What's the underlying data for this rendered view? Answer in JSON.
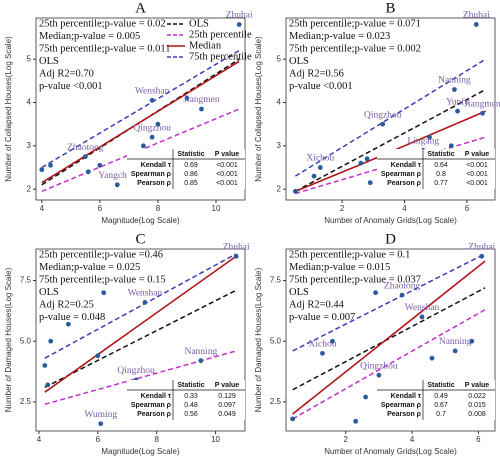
{
  "chart_data": [
    {
      "type": "scatter",
      "title": "A",
      "xlabel": "Magnitude(Log Scale)",
      "ylabel": "Number of Collapsed Houses(Log Scale)",
      "xlim": [
        3.8,
        11
      ],
      "ylim": [
        1.75,
        5.95
      ],
      "xticks": [
        4,
        6,
        8,
        10
      ],
      "yticks": [
        2,
        3,
        4,
        5
      ],
      "annotations": [
        "25th percentile;p-value = 0.02",
        "Median;p-value = 0.005",
        "75th percentile;p-value = 0.011",
        "OLS",
        "Adj R2=0.70",
        "p-value <0.001"
      ],
      "legend": "upper right",
      "points": {
        "color": "#2b5b9a",
        "x": [
          4.0,
          4.3,
          5.5,
          5.6,
          6.0,
          6.6,
          7.2,
          7.5,
          7.8,
          7.8,
          8.0,
          9.0,
          9.5,
          10.8
        ],
        "values": [
          2.45,
          2.55,
          2.75,
          2.4,
          2.55,
          2.1,
          2.7,
          3.0,
          3.2,
          4.05,
          3.5,
          4.1,
          3.85,
          5.8
        ],
        "labels": [
          null,
          null,
          "Zhaotong",
          null,
          null,
          "Yangchun",
          null,
          null,
          "Qingzhou",
          "Wenshan",
          null,
          null,
          "Jiangmen",
          "Zhuhai"
        ]
      },
      "series": [
        {
          "name": "OLS",
          "color": "#111111",
          "style": "dashed",
          "x": [
            4,
            10.8
          ],
          "values": [
            2.1,
            5.0
          ]
        },
        {
          "name": "25th percentile",
          "color": "#c42fd0",
          "style": "dashed",
          "x": [
            4,
            10.8
          ],
          "values": [
            1.95,
            3.85
          ]
        },
        {
          "name": "Median",
          "color": "#b0151a",
          "style": "solid",
          "x": [
            4,
            10.8
          ],
          "values": [
            2.15,
            4.95
          ]
        },
        {
          "name": "75th percentile",
          "color": "#3a3fb5",
          "style": "dashed",
          "x": [
            4,
            10.8
          ],
          "values": [
            2.5,
            5.2
          ]
        }
      ],
      "table": {
        "columns": [
          "Statistic",
          "P value"
        ],
        "rows": [
          [
            "Kendall τ",
            0.69,
            "<0.001"
          ],
          [
            "Spearman ρ",
            0.86,
            "<0.001"
          ],
          [
            "Pearson ρ",
            0.85,
            "<0.001"
          ]
        ]
      }
    },
    {
      "type": "scatter",
      "title": "B",
      "xlabel": "Number of Anomaly Grids(Log Scale)",
      "ylabel": "Number of Collapsed Houses(Log Scale)",
      "xlim": [
        0.2,
        6.9
      ],
      "ylim": [
        1.75,
        5.95
      ],
      "xticks": [
        2,
        4,
        6
      ],
      "yticks": [
        2,
        3,
        4,
        5
      ],
      "annotations": [
        "25th percentile;p-value = 0.071",
        "Median;p-value = 0.023",
        "75th percentile;p-value = 0.002",
        "OLS",
        "Adj R2=0.56",
        "p-value <0.001"
      ],
      "points": {
        "color": "#2b5b9a",
        "x": [
          0.5,
          1.1,
          1.3,
          2.6,
          2.8,
          2.9,
          3.3,
          4.6,
          4.8,
          5.5,
          5.7,
          5.6,
          6.5,
          6.3
        ],
        "values": [
          1.95,
          2.3,
          2.5,
          2.6,
          2.7,
          2.15,
          3.5,
          2.9,
          3.2,
          3.0,
          3.8,
          4.3,
          3.75,
          5.8
        ],
        "labels": [
          null,
          null,
          "Xichou",
          null,
          null,
          null,
          "Qingzhou",
          "Lingang",
          null,
          null,
          "Yunfu",
          "Nanning",
          "Jiangmen",
          "Zhuhai"
        ]
      },
      "series": [
        {
          "color": "#111111",
          "style": "dashed",
          "x": [
            0.5,
            6.6
          ],
          "values": [
            1.95,
            4.3
          ]
        },
        {
          "color": "#c42fd0",
          "style": "dashed",
          "x": [
            0.5,
            6.6
          ],
          "values": [
            1.9,
            3.2
          ]
        },
        {
          "color": "#b0151a",
          "style": "solid",
          "x": [
            0.5,
            2.7,
            6.6
          ],
          "values": [
            1.95,
            2.6,
            3.8
          ]
        },
        {
          "color": "#3a3fb5",
          "style": "dashed",
          "x": [
            0.5,
            6.6
          ],
          "values": [
            2.3,
            5.0
          ]
        }
      ],
      "table": {
        "columns": [
          "Statistic",
          "P value"
        ],
        "rows": [
          [
            "Kendall τ",
            0.64,
            "<0.001"
          ],
          [
            "Spearman ρ",
            0.8,
            "<0.001"
          ],
          [
            "Pearson ρ",
            0.77,
            "<0.001"
          ]
        ]
      }
    },
    {
      "type": "scatter",
      "title": "C",
      "xlabel": "Magnitude(Log Scale)",
      "ylabel": "Number of Damaged Houses(Log Scale)",
      "xlim": [
        3.9,
        11
      ],
      "ylim": [
        1.3,
        8.8
      ],
      "xticks": [
        4,
        6,
        8,
        10
      ],
      "yticks": [
        2.5,
        {
          "value": 5,
          "label": "5.0"
        },
        7.5
      ],
      "annotations": [
        "25th percentile;p-value =0.46",
        "Median;p-value = 0.025",
        "75th percentile;p-value = 0.15",
        "OLS",
        "Adj R2=0.25",
        "p-value = 0.048"
      ],
      "points": {
        "color": "#2b5b9a",
        "x": [
          4.2,
          4.3,
          4.4,
          5.0,
          6.0,
          6.2,
          7.3,
          7.6,
          6.1,
          9.5,
          10.7
        ],
        "values": [
          4.0,
          3.2,
          5.0,
          5.7,
          4.4,
          7.0,
          3.4,
          6.6,
          1.6,
          4.2,
          8.5
        ],
        "labels": [
          null,
          null,
          null,
          null,
          null,
          null,
          "Qingzhou",
          "Wenshan",
          "Wuming",
          "Nanning",
          "Zhuhai"
        ]
      },
      "series": [
        {
          "color": "#111111",
          "style": "dashed",
          "x": [
            4.2,
            10.7
          ],
          "values": [
            3.1,
            7.1
          ]
        },
        {
          "color": "#c42fd0",
          "style": "dashed",
          "x": [
            4.2,
            10.7
          ],
          "values": [
            2.4,
            4.6
          ]
        },
        {
          "color": "#b0151a",
          "style": "solid",
          "x": [
            4.2,
            10.7
          ],
          "values": [
            2.9,
            8.5
          ]
        },
        {
          "color": "#3a3fb5",
          "style": "dashed",
          "x": [
            4.2,
            10.7
          ],
          "values": [
            4.3,
            8.6
          ]
        }
      ],
      "table": {
        "columns": [
          "Statistic",
          "P value"
        ],
        "rows": [
          [
            "Kendall τ",
            0.33,
            0.129
          ],
          [
            "Spearman ρ",
            0.48,
            0.097
          ],
          [
            "Pearson ρ",
            0.56,
            0.049
          ]
        ]
      }
    },
    {
      "type": "scatter",
      "title": "D",
      "xlabel": "Number of Anomaly Grids(Log Scale)",
      "ylabel": "Number of Damaged Houses(Log Scale)",
      "xlim": [
        0.2,
        6.5
      ],
      "ylim": [
        1.3,
        8.8
      ],
      "xticks": [
        2,
        4,
        6
      ],
      "yticks": [
        2.5,
        {
          "value": 5,
          "label": "5.0"
        },
        7.5
      ],
      "annotations": [
        "25th percentile;p-value = 0.1",
        "Median;p-value = 0.015",
        "75th percentile;p-value = 0.037",
        "OLS",
        "Adj R2=0.44",
        "p-value = 0.007"
      ],
      "points": {
        "color": "#2b5b9a",
        "x": [
          0.4,
          1.3,
          1.6,
          2.3,
          2.6,
          2.9,
          3.0,
          3.7,
          4.3,
          4.6,
          5.3,
          5.8,
          6.1
        ],
        "values": [
          1.8,
          4.5,
          5.0,
          1.7,
          2.7,
          7.0,
          3.6,
          6.9,
          6.0,
          4.3,
          4.6,
          5.0,
          8.5
        ],
        "labels": [
          null,
          "Xichou",
          null,
          null,
          null,
          null,
          "Qingzhou",
          "Zhaotong",
          "Wenshan",
          null,
          "Nanning",
          null,
          "Zhuhai"
        ]
      },
      "series": [
        {
          "color": "#111111",
          "style": "dashed",
          "x": [
            0.4,
            6.2
          ],
          "values": [
            3.0,
            7.2
          ]
        },
        {
          "color": "#c42fd0",
          "style": "dashed",
          "x": [
            0.4,
            6.2
          ],
          "values": [
            1.8,
            6.3
          ]
        },
        {
          "color": "#b0151a",
          "style": "solid",
          "x": [
            0.4,
            6.2
          ],
          "values": [
            2.0,
            8.3
          ]
        },
        {
          "color": "#3a3fb5",
          "style": "dashed",
          "x": [
            0.4,
            6.2
          ],
          "values": [
            4.6,
            8.6
          ]
        }
      ],
      "table": {
        "columns": [
          "Statistic",
          "P value"
        ],
        "rows": [
          [
            "Kendall τ",
            0.49,
            0.022
          ],
          [
            "Spearman ρ",
            0.67,
            0.015
          ],
          [
            "Pearson ρ",
            0.7,
            0.008
          ]
        ]
      }
    }
  ]
}
